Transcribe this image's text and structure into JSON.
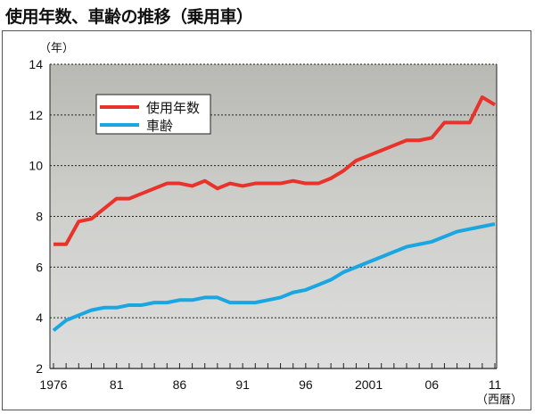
{
  "title": "使用年数、車齢の推移（乗用車）",
  "chart_data": {
    "type": "line",
    "title": "使用年数、車齢の推移（乗用車）",
    "ylabel": "（年）",
    "xlabel": "（西暦）",
    "ylim": [
      2,
      14
    ],
    "yticks": [
      "2",
      "4",
      "6",
      "8",
      "10",
      "12",
      "14"
    ],
    "xlim": [
      1976,
      2011
    ],
    "xtick_labels": [
      {
        "year": 1976,
        "label": "1976"
      },
      {
        "year": 1981,
        "label": "81"
      },
      {
        "year": 1986,
        "label": "86"
      },
      {
        "year": 1991,
        "label": "91"
      },
      {
        "year": 1996,
        "label": "96"
      },
      {
        "year": 2001,
        "label": "2001"
      },
      {
        "year": 2006,
        "label": "06"
      },
      {
        "year": 2011,
        "label": "11"
      }
    ],
    "grid": "horizontal dotted",
    "legend_position": "top-left",
    "x": [
      1976,
      1977,
      1978,
      1979,
      1980,
      1981,
      1982,
      1983,
      1984,
      1985,
      1986,
      1987,
      1988,
      1989,
      1990,
      1991,
      1992,
      1993,
      1994,
      1995,
      1996,
      1997,
      1998,
      1999,
      2000,
      2001,
      2002,
      2003,
      2004,
      2005,
      2006,
      2007,
      2008,
      2009,
      2010,
      2011
    ],
    "series": [
      {
        "name": "使用年数",
        "color": "#e8322a",
        "values": [
          6.9,
          6.9,
          7.8,
          7.9,
          8.3,
          8.7,
          8.7,
          8.9,
          9.1,
          9.3,
          9.3,
          9.2,
          9.4,
          9.1,
          9.3,
          9.2,
          9.3,
          9.3,
          9.3,
          9.4,
          9.3,
          9.3,
          9.5,
          9.8,
          10.2,
          10.4,
          10.6,
          10.8,
          11.0,
          11.0,
          11.1,
          11.7,
          11.7,
          11.7,
          12.7,
          12.4
        ]
      },
      {
        "name": "車齢",
        "color": "#1aa6e0",
        "values": [
          3.5,
          3.9,
          4.1,
          4.3,
          4.4,
          4.4,
          4.5,
          4.5,
          4.6,
          4.6,
          4.7,
          4.7,
          4.8,
          4.8,
          4.6,
          4.6,
          4.6,
          4.7,
          4.8,
          5.0,
          5.1,
          5.3,
          5.5,
          5.8,
          6.0,
          6.2,
          6.4,
          6.6,
          6.8,
          6.9,
          7.0,
          7.2,
          7.4,
          7.5,
          7.6,
          7.7
        ]
      }
    ]
  }
}
